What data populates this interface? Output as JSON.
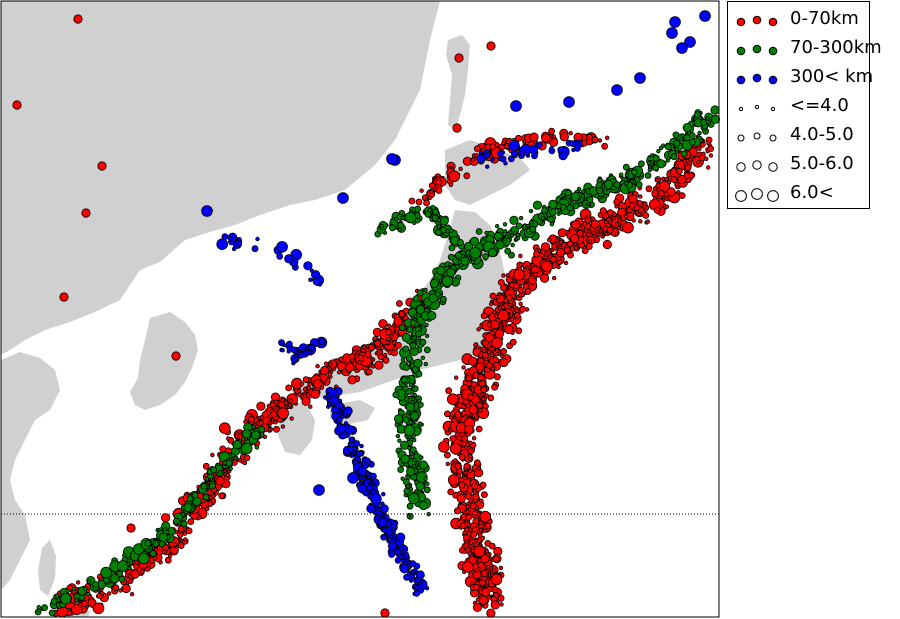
{
  "colors": {
    "land": "#d0d0d0",
    "sea": "#ffffff",
    "shallow": "#ff0000",
    "intermediate": "#008000",
    "deep": "#0000ff",
    "outline": "#000000"
  },
  "legend": {
    "depth": [
      {
        "label": "0-70km",
        "color": "#ff0000"
      },
      {
        "label": "70-300km",
        "color": "#008000"
      },
      {
        "label": "300< km",
        "color": "#0000ff"
      }
    ],
    "magnitude": [
      {
        "label": "<=4.0",
        "size": "small"
      },
      {
        "label": "4.0-5.0",
        "size": "medium-small"
      },
      {
        "label": "5.0-6.0",
        "size": "medium"
      },
      {
        "label": "6.0<",
        "size": "large"
      }
    ]
  }
}
